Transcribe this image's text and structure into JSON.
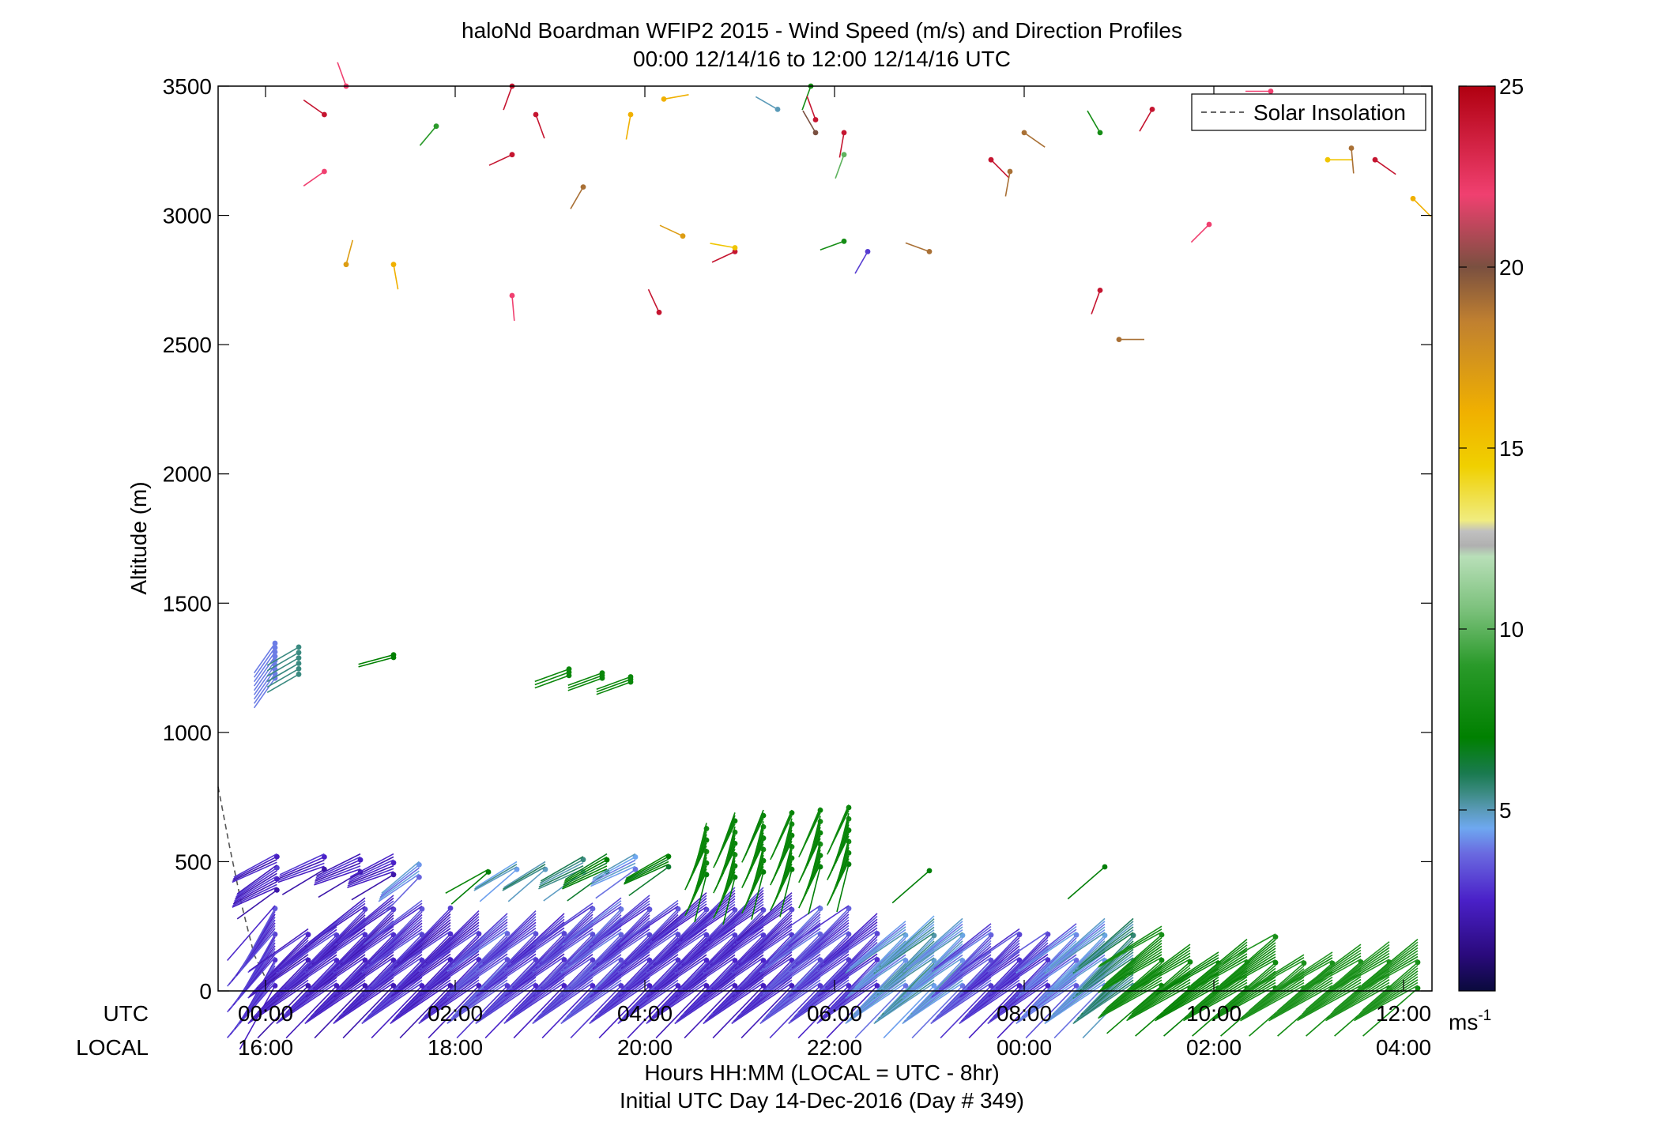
{
  "chart_data": {
    "type": "scatter",
    "title": "haloNd Boardman WFIP2 2015 - Wind Speed (m/s) and Direction Profiles",
    "subtitle": "00:00 12/14/16 to 12:00 12/14/16  UTC",
    "ylabel": "Altitude (m)",
    "xlabel": "Hours HH:MM  (LOCAL = UTC - 8hr)",
    "xlabel2": "Initial UTC Day 14-Dec-2016 (Day # 349)",
    "utc_row_label": "UTC",
    "local_row_label": "LOCAL",
    "xlim_hours": [
      -0.5,
      12.3
    ],
    "ylim": [
      0,
      3500
    ],
    "y_ticks": [
      0,
      500,
      1000,
      1500,
      2000,
      2500,
      3000,
      3500
    ],
    "x_ticks": [
      {
        "h": 0,
        "utc": "00:00",
        "local": "16:00"
      },
      {
        "h": 2,
        "utc": "02:00",
        "local": "18:00"
      },
      {
        "h": 4,
        "utc": "04:00",
        "local": "20:00"
      },
      {
        "h": 6,
        "utc": "06:00",
        "local": "22:00"
      },
      {
        "h": 8,
        "utc": "08:00",
        "local": "00:00"
      },
      {
        "h": 10,
        "utc": "10:00",
        "local": "02:00"
      },
      {
        "h": 12,
        "utc": "12:00",
        "local": "04:00"
      }
    ],
    "legend": {
      "position": "top-right",
      "entries": [
        {
          "label": "Solar Insolation",
          "style": "dashed",
          "color": "#666666"
        }
      ]
    },
    "colorbar": {
      "min": 0,
      "max": 25,
      "ticks": [
        5,
        10,
        15,
        20,
        25
      ],
      "unit_label": "ms",
      "unit_exponent": "-1"
    },
    "solar_insolation": [
      [
        -0.5,
        790
      ],
      [
        -0.38,
        560
      ],
      [
        -0.25,
        330
      ],
      [
        -0.12,
        140
      ],
      [
        0.0,
        50
      ]
    ],
    "upper_barbs": [
      {
        "t": 0.62,
        "z": 3390,
        "spd": 24,
        "dir": 305
      },
      {
        "t": 0.62,
        "z": 3170,
        "spd": 22,
        "dir": 235
      },
      {
        "t": 0.85,
        "z": 3500,
        "spd": 22,
        "dir": 340
      },
      {
        "t": 0.85,
        "z": 2810,
        "spd": 17,
        "dir": 15
      },
      {
        "t": 1.35,
        "z": 2810,
        "spd": 16,
        "dir": 170
      },
      {
        "t": 1.8,
        "z": 3345,
        "spd": 9,
        "dir": 220
      },
      {
        "t": 2.6,
        "z": 3500,
        "spd": 24,
        "dir": 200
      },
      {
        "t": 2.85,
        "z": 3390,
        "spd": 24,
        "dir": 160
      },
      {
        "t": 2.6,
        "z": 3235,
        "spd": 24,
        "dir": 245
      },
      {
        "t": 2.6,
        "z": 2690,
        "spd": 22,
        "dir": 175
      },
      {
        "t": 3.35,
        "z": 3110,
        "spd": 19,
        "dir": 210
      },
      {
        "t": 3.85,
        "z": 3390,
        "spd": 16,
        "dir": 190
      },
      {
        "t": 4.2,
        "z": 3450,
        "spd": 16,
        "dir": 80
      },
      {
        "t": 4.15,
        "z": 2625,
        "spd": 24,
        "dir": 335
      },
      {
        "t": 4.4,
        "z": 2920,
        "spd": 17,
        "dir": 295
      },
      {
        "t": 4.95,
        "z": 2860,
        "spd": 24,
        "dir": 245
      },
      {
        "t": 4.95,
        "z": 2875,
        "spd": 15,
        "dir": 280
      },
      {
        "t": 5.4,
        "z": 3410,
        "spd": 5,
        "dir": 300
      },
      {
        "t": 5.75,
        "z": 3500,
        "spd": 8,
        "dir": 200
      },
      {
        "t": 5.8,
        "z": 3370,
        "spd": 24,
        "dir": 340
      },
      {
        "t": 5.8,
        "z": 3320,
        "spd": 20,
        "dir": 330
      },
      {
        "t": 6.1,
        "z": 3320,
        "spd": 24,
        "dir": 190
      },
      {
        "t": 6.1,
        "z": 3235,
        "spd": 10,
        "dir": 200
      },
      {
        "t": 6.1,
        "z": 2900,
        "spd": 8,
        "dir": 250
      },
      {
        "t": 6.35,
        "z": 2860,
        "spd": 3,
        "dir": 210
      },
      {
        "t": 7.0,
        "z": 2860,
        "spd": 19,
        "dir": 290
      },
      {
        "t": 8.0,
        "z": 3320,
        "spd": 19,
        "dir": 125
      },
      {
        "t": 7.65,
        "z": 3215,
        "spd": 24,
        "dir": 135
      },
      {
        "t": 7.85,
        "z": 3170,
        "spd": 19,
        "dir": 190
      },
      {
        "t": 8.8,
        "z": 3320,
        "spd": 8,
        "dir": 330
      },
      {
        "t": 8.8,
        "z": 2710,
        "spd": 24,
        "dir": 200
      },
      {
        "t": 9.0,
        "z": 2520,
        "spd": 19,
        "dir": 90
      },
      {
        "t": 9.35,
        "z": 3410,
        "spd": 24,
        "dir": 210
      },
      {
        "t": 9.95,
        "z": 2965,
        "spd": 22,
        "dir": 225
      },
      {
        "t": 10.6,
        "z": 3480,
        "spd": 22,
        "dir": 270
      },
      {
        "t": 11.2,
        "z": 3215,
        "spd": 15,
        "dir": 90
      },
      {
        "t": 11.45,
        "z": 3260,
        "spd": 19,
        "dir": 175
      },
      {
        "t": 11.7,
        "z": 3215,
        "spd": 24,
        "dir": 125
      },
      {
        "t": 12.1,
        "z": 3065,
        "spd": 16,
        "dir": 135
      }
    ],
    "mid_groups": [
      {
        "t": 0.1,
        "z0": 1210,
        "z1": 1345,
        "n": 9,
        "spd": 4.0,
        "dir": 215
      },
      {
        "t": 0.35,
        "z0": 1225,
        "z1": 1330,
        "n": 6,
        "spd": 5.5,
        "dir": 240
      },
      {
        "t": 1.35,
        "z0": 1290,
        "z1": 1300,
        "n": 2,
        "spd": 7.0,
        "dir": 255
      },
      {
        "t": 3.2,
        "z0": 1220,
        "z1": 1245,
        "n": 3,
        "spd": 7.5,
        "dir": 250
      },
      {
        "t": 3.55,
        "z0": 1210,
        "z1": 1230,
        "n": 3,
        "spd": 7.5,
        "dir": 250
      },
      {
        "t": 3.85,
        "z0": 1195,
        "z1": 1215,
        "n": 3,
        "spd": 7.5,
        "dir": 250
      }
    ],
    "profile_groups": [
      {
        "t": 0.12,
        "z0": 390,
        "z1": 530,
        "spd": 2.5,
        "dir": 240
      },
      {
        "t": 0.62,
        "z0": 470,
        "z1": 530,
        "spd": 2.5,
        "dir": 245
      },
      {
        "t": 1.0,
        "z0": 460,
        "z1": 530,
        "spd": 2.5,
        "dir": 245
      },
      {
        "t": 1.35,
        "z0": 450,
        "z1": 530,
        "spd": 2.5,
        "dir": 245
      },
      {
        "t": 1.62,
        "z0": 440,
        "z1": 500,
        "spd": 4.3,
        "dir": 230
      },
      {
        "t": 2.35,
        "z0": 460,
        "z1": 470,
        "spd": 7.5,
        "dir": 235
      },
      {
        "t": 2.65,
        "z0": 470,
        "z1": 500,
        "spd": 5.0,
        "dir": 235
      },
      {
        "t": 2.95,
        "z0": 470,
        "z1": 500,
        "spd": 5.5,
        "dir": 235
      },
      {
        "t": 3.35,
        "z0": 460,
        "z1": 520,
        "spd": 5.5,
        "dir": 240
      },
      {
        "t": 3.6,
        "z0": 460,
        "z1": 530,
        "spd": 7.0,
        "dir": 240
      },
      {
        "t": 3.9,
        "z0": 470,
        "z1": 530,
        "spd": 4.5,
        "dir": 240
      },
      {
        "t": 4.25,
        "z0": 480,
        "z1": 530,
        "spd": 7.0,
        "dir": 240
      },
      {
        "t": 4.65,
        "z0": 450,
        "z1": 650,
        "spd": 7.5,
        "dir": 200
      },
      {
        "t": 4.95,
        "z0": 440,
        "z1": 690,
        "spd": 7.5,
        "dir": 200
      },
      {
        "t": 5.25,
        "z0": 460,
        "z1": 700,
        "spd": 7.5,
        "dir": 200
      },
      {
        "t": 5.55,
        "z0": 470,
        "z1": 700,
        "spd": 7.5,
        "dir": 200
      },
      {
        "t": 5.85,
        "z0": 480,
        "z1": 710,
        "spd": 7.5,
        "dir": 200
      },
      {
        "t": 6.15,
        "z0": 490,
        "z1": 720,
        "spd": 7.5,
        "dir": 200
      },
      {
        "t": 7.0,
        "z0": 465,
        "z1": 465,
        "spd": 7.5,
        "dir": 235
      },
      {
        "t": 8.85,
        "z0": 480,
        "z1": 480,
        "spd": 7.5,
        "dir": 235
      }
    ],
    "lower_groups": [
      {
        "t": 0.1,
        "z0": 20,
        "z1": 330,
        "spd": 3.0,
        "dir": 215
      },
      {
        "t": 0.45,
        "z0": 20,
        "z1": 240,
        "spd": 2.5,
        "dir": 230
      },
      {
        "t": 0.75,
        "z0": 20,
        "z1": 270,
        "spd": 2.8,
        "dir": 230
      },
      {
        "t": 1.05,
        "z0": 20,
        "z1": 360,
        "spd": 2.6,
        "dir": 230
      },
      {
        "t": 1.35,
        "z0": 20,
        "z1": 370,
        "spd": 2.6,
        "dir": 230
      },
      {
        "t": 1.65,
        "z0": 20,
        "z1": 350,
        "spd": 3.0,
        "dir": 230
      },
      {
        "t": 1.95,
        "z0": 20,
        "z1": 320,
        "spd": 2.6,
        "dir": 230
      },
      {
        "t": 2.25,
        "z0": 20,
        "z1": 310,
        "spd": 2.8,
        "dir": 230
      },
      {
        "t": 2.55,
        "z0": 20,
        "z1": 300,
        "spd": 3.5,
        "dir": 230
      },
      {
        "t": 2.85,
        "z0": 20,
        "z1": 310,
        "spd": 3.2,
        "dir": 230
      },
      {
        "t": 3.15,
        "z0": 20,
        "z1": 300,
        "spd": 3.0,
        "dir": 230
      },
      {
        "t": 3.45,
        "z0": 20,
        "z1": 340,
        "spd": 3.2,
        "dir": 230
      },
      {
        "t": 3.75,
        "z0": 20,
        "z1": 360,
        "spd": 3.5,
        "dir": 230
      },
      {
        "t": 4.05,
        "z0": 20,
        "z1": 370,
        "spd": 3.0,
        "dir": 230
      },
      {
        "t": 4.35,
        "z0": 20,
        "z1": 350,
        "spd": 3.0,
        "dir": 230
      },
      {
        "t": 4.65,
        "z0": 20,
        "z1": 380,
        "spd": 2.8,
        "dir": 230
      },
      {
        "t": 4.95,
        "z0": 20,
        "z1": 400,
        "spd": 2.8,
        "dir": 230
      },
      {
        "t": 5.25,
        "z0": 20,
        "z1": 400,
        "spd": 2.8,
        "dir": 230
      },
      {
        "t": 5.55,
        "z0": 20,
        "z1": 380,
        "spd": 2.8,
        "dir": 230
      },
      {
        "t": 5.85,
        "z0": 20,
        "z1": 330,
        "spd": 3.5,
        "dir": 230
      },
      {
        "t": 6.15,
        "z0": 20,
        "z1": 330,
        "spd": 3.2,
        "dir": 230
      },
      {
        "t": 6.45,
        "z0": 20,
        "z1": 300,
        "spd": 3.0,
        "dir": 230
      },
      {
        "t": 6.75,
        "z0": 20,
        "z1": 270,
        "spd": 4.5,
        "dir": 230
      },
      {
        "t": 7.05,
        "z0": 20,
        "z1": 290,
        "spd": 5.0,
        "dir": 230
      },
      {
        "t": 7.35,
        "z0": 20,
        "z1": 280,
        "spd": 4.5,
        "dir": 230
      },
      {
        "t": 7.65,
        "z0": 20,
        "z1": 260,
        "spd": 3.5,
        "dir": 230
      },
      {
        "t": 7.95,
        "z0": 20,
        "z1": 240,
        "spd": 3.0,
        "dir": 230
      },
      {
        "t": 8.25,
        "z0": 20,
        "z1": 230,
        "spd": 3.0,
        "dir": 230
      },
      {
        "t": 8.55,
        "z0": 20,
        "z1": 260,
        "spd": 4.0,
        "dir": 230
      },
      {
        "t": 8.85,
        "z0": 20,
        "z1": 280,
        "spd": 4.5,
        "dir": 230
      },
      {
        "t": 9.15,
        "z0": 20,
        "z1": 280,
        "spd": 5.5,
        "dir": 230
      },
      {
        "t": 9.45,
        "z0": 20,
        "z1": 250,
        "spd": 8.0,
        "dir": 235
      },
      {
        "t": 9.75,
        "z0": 10,
        "z1": 180,
        "spd": 8.0,
        "dir": 235
      },
      {
        "t": 10.05,
        "z0": 10,
        "z1": 150,
        "spd": 7.5,
        "dir": 235
      },
      {
        "t": 10.35,
        "z0": 10,
        "z1": 200,
        "spd": 8.0,
        "dir": 235
      },
      {
        "t": 10.65,
        "z0": 10,
        "z1": 220,
        "spd": 8.0,
        "dir": 235
      },
      {
        "t": 10.95,
        "z0": 10,
        "z1": 140,
        "spd": 8.5,
        "dir": 235
      },
      {
        "t": 11.25,
        "z0": 10,
        "z1": 150,
        "spd": 8.5,
        "dir": 235
      },
      {
        "t": 11.55,
        "z0": 10,
        "z1": 180,
        "spd": 8.5,
        "dir": 235
      },
      {
        "t": 11.85,
        "z0": 10,
        "z1": 190,
        "spd": 8.5,
        "dir": 235
      },
      {
        "t": 12.15,
        "z0": 10,
        "z1": 200,
        "spd": 8.5,
        "dir": 235
      }
    ]
  }
}
